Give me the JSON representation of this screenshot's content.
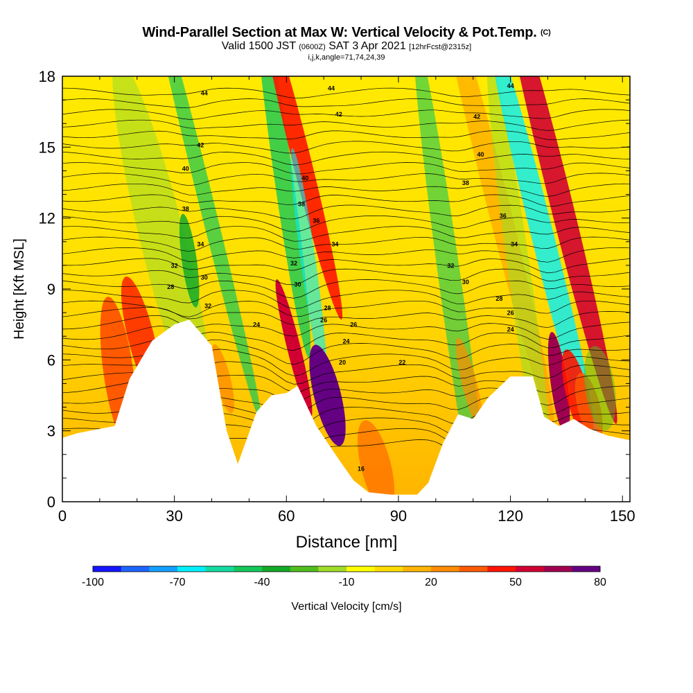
{
  "chart_data": {
    "type": "heatmap",
    "title": "Wind-Parallel Section at Max W: Vertical Velocity & Pot.Temp.",
    "title_mark": "(C)",
    "subtitle_valid": "Valid 1500 JST",
    "subtitle_z": "(0600Z)",
    "subtitle_date": "SAT 3 Apr 2021",
    "subtitle_fcst": "[12hrFcst@2315z]",
    "subtitle2": "i,j,k,angle=71,74,24,39",
    "xlabel": "Distance [nm]",
    "ylabel": "Height [Kft MSL]",
    "xlim": [
      0,
      152
    ],
    "ylim": [
      0,
      18
    ],
    "x_ticks": [
      "0",
      "30",
      "60",
      "90",
      "120",
      "150"
    ],
    "y_ticks": [
      "0",
      "3",
      "6",
      "9",
      "12",
      "15",
      "18"
    ],
    "colorbar": {
      "label": "Vertical Velocity [cm/s]",
      "tick_labels": [
        "-100",
        "-70",
        "-40",
        "-10",
        "20",
        "50",
        "80"
      ],
      "colors": [
        "#1414ff",
        "#1e64ff",
        "#14a0ff",
        "#00f0ff",
        "#14dca0",
        "#14c85a",
        "#14aa28",
        "#50be1e",
        "#a0dc28",
        "#ffff00",
        "#ffdc00",
        "#ffb400",
        "#ff8c00",
        "#ff5a00",
        "#ff1400",
        "#d20032",
        "#a00050",
        "#640082"
      ]
    },
    "contour_labels": [
      "44",
      "42",
      "40",
      "38",
      "36",
      "34",
      "32",
      "30",
      "28",
      "26",
      "24",
      "22",
      "20",
      "16"
    ],
    "updraft_max_x": [
      15,
      21,
      34,
      62,
      64,
      71,
      84,
      105,
      133,
      138
    ],
    "terrain_kft": [
      [
        0,
        2.7
      ],
      [
        4,
        2.9
      ],
      [
        14,
        3.2
      ],
      [
        18,
        5.2
      ],
      [
        24,
        6.8
      ],
      [
        30,
        7.5
      ],
      [
        34,
        7.7
      ],
      [
        40,
        6.6
      ],
      [
        44,
        3.0
      ],
      [
        47,
        1.6
      ],
      [
        52,
        3.8
      ],
      [
        56,
        4.5
      ],
      [
        60,
        4.6
      ],
      [
        63,
        4.9
      ],
      [
        68,
        3.2
      ],
      [
        74,
        1.8
      ],
      [
        78,
        0.9
      ],
      [
        82,
        0.4
      ],
      [
        88,
        0.3
      ],
      [
        95,
        0.3
      ],
      [
        98,
        0.8
      ],
      [
        102,
        2.5
      ],
      [
        106,
        3.7
      ],
      [
        110,
        3.5
      ],
      [
        114,
        4.4
      ],
      [
        120,
        5.3
      ],
      [
        126,
        5.3
      ],
      [
        129,
        3.6
      ],
      [
        133,
        3.2
      ],
      [
        137,
        3.5
      ],
      [
        141,
        3.1
      ],
      [
        146,
        2.8
      ],
      [
        152,
        2.6
      ]
    ]
  }
}
